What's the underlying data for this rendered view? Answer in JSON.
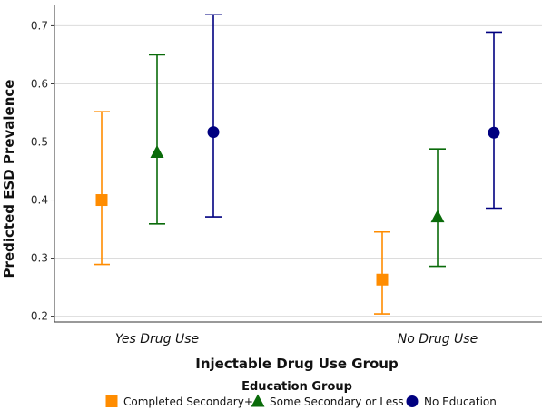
{
  "chart_data": {
    "type": "scatter",
    "subtype": "point-with-error-bars",
    "title": "",
    "xlabel": "Injectable Drug Use Group",
    "ylabel": "Predicted ESD Prevalence",
    "ylim": [
      0.19,
      0.735
    ],
    "yticks": [
      0.2,
      0.3,
      0.4,
      0.5,
      0.6,
      0.7
    ],
    "ytick_labels": [
      "0.2",
      "0.3",
      "0.4",
      "0.5",
      "0.6",
      "0.7"
    ],
    "categories": [
      "Yes Drug Use",
      "No Drug Use"
    ],
    "grid": "horizontal",
    "legend": {
      "title": "Education Group",
      "placement": "bottom"
    },
    "series": [
      {
        "name": "Completed Secondary+",
        "color": "#ff8c00",
        "marker": "square",
        "values": [
          0.4,
          0.263
        ],
        "lower": [
          0.289,
          0.204
        ],
        "upper": [
          0.552,
          0.345
        ]
      },
      {
        "name": "Some Secondary or Less",
        "color": "#0a6b0a",
        "marker": "triangle",
        "values": [
          0.482,
          0.371
        ],
        "lower": [
          0.359,
          0.286
        ],
        "upper": [
          0.65,
          0.488
        ]
      },
      {
        "name": "No Education",
        "color": "#000080",
        "marker": "circle",
        "values": [
          0.517,
          0.516
        ],
        "lower": [
          0.371,
          0.386
        ],
        "upper": [
          0.719,
          0.689
        ]
      }
    ]
  }
}
